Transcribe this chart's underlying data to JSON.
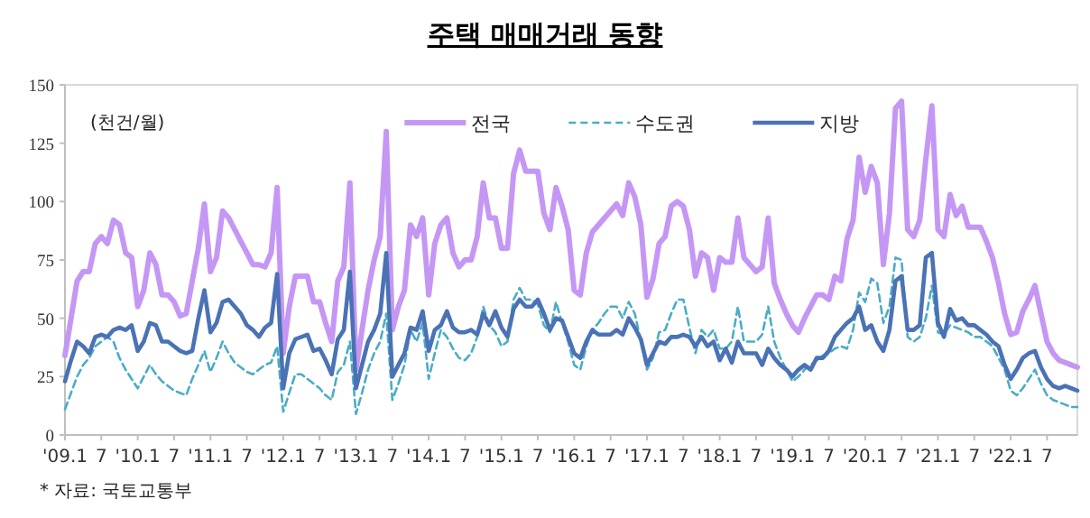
{
  "chart_data": {
    "type": "line",
    "title": "주택 매매거래 동향",
    "ylabel": "(천건/월)",
    "annotations": [
      "* 자료: 국토교통부"
    ],
    "x": [
      "2009-01",
      "2009-02",
      "2009-03",
      "2009-04",
      "2009-05",
      "2009-06",
      "2009-07",
      "2009-08",
      "2009-09",
      "2009-10",
      "2009-11",
      "2009-12",
      "2010-01",
      "2010-02",
      "2010-03",
      "2010-04",
      "2010-05",
      "2010-06",
      "2010-07",
      "2010-08",
      "2010-09",
      "2010-10",
      "2010-11",
      "2010-12",
      "2011-01",
      "2011-02",
      "2011-03",
      "2011-04",
      "2011-05",
      "2011-06",
      "2011-07",
      "2011-08",
      "2011-09",
      "2011-10",
      "2011-11",
      "2011-12",
      "2012-01",
      "2012-02",
      "2012-03",
      "2012-04",
      "2012-05",
      "2012-06",
      "2012-07",
      "2012-08",
      "2012-09",
      "2012-10",
      "2012-11",
      "2012-12",
      "2013-01",
      "2013-02",
      "2013-03",
      "2013-04",
      "2013-05",
      "2013-06",
      "2013-07",
      "2013-08",
      "2013-09",
      "2013-10",
      "2013-11",
      "2013-12",
      "2014-01",
      "2014-02",
      "2014-03",
      "2014-04",
      "2014-05",
      "2014-06",
      "2014-07",
      "2014-08",
      "2014-09",
      "2014-10",
      "2014-11",
      "2014-12",
      "2015-01",
      "2015-02",
      "2015-03",
      "2015-04",
      "2015-05",
      "2015-06",
      "2015-07",
      "2015-08",
      "2015-09",
      "2015-10",
      "2015-11",
      "2015-12",
      "2016-01",
      "2016-02",
      "2016-03",
      "2016-04",
      "2016-05",
      "2016-06",
      "2016-07",
      "2016-08",
      "2016-09",
      "2016-10",
      "2016-11",
      "2016-12",
      "2017-01",
      "2017-02",
      "2017-03",
      "2017-04",
      "2017-05",
      "2017-06",
      "2017-07",
      "2017-08",
      "2017-09",
      "2017-10",
      "2017-11",
      "2017-12",
      "2018-01",
      "2018-02",
      "2018-03",
      "2018-04",
      "2018-05",
      "2018-06",
      "2018-07",
      "2018-08",
      "2018-09",
      "2018-10",
      "2018-11",
      "2018-12",
      "2019-01",
      "2019-02",
      "2019-03",
      "2019-04",
      "2019-05",
      "2019-06",
      "2019-07",
      "2019-08",
      "2019-09",
      "2019-10",
      "2019-11",
      "2019-12",
      "2020-01",
      "2020-02",
      "2020-03",
      "2020-04",
      "2020-05",
      "2020-06",
      "2020-07",
      "2020-08",
      "2020-09",
      "2020-10",
      "2020-11",
      "2020-12",
      "2021-01",
      "2021-02",
      "2021-03",
      "2021-04",
      "2021-05",
      "2021-06",
      "2021-07",
      "2021-08",
      "2021-09",
      "2021-10",
      "2021-11",
      "2021-12",
      "2022-01",
      "2022-02",
      "2022-03",
      "2022-04",
      "2022-05",
      "2022-06",
      "2022-07",
      "2022-08",
      "2022-09",
      "2022-10",
      "2022-11",
      "2022-12"
    ],
    "series": [
      {
        "name": "전국",
        "color": "#c597f5",
        "line_style": "solid",
        "values": [
          34,
          50,
          66,
          70,
          70,
          82,
          85,
          82,
          92,
          90,
          78,
          76,
          55,
          62,
          78,
          73,
          60,
          60,
          57,
          51,
          52,
          66,
          80,
          99,
          70,
          76,
          96,
          93,
          88,
          83,
          78,
          73,
          73,
          72,
          78,
          106,
          35,
          55,
          68,
          68,
          68,
          57,
          57,
          48,
          40,
          66,
          72,
          108,
          28,
          45,
          62,
          75,
          85,
          130,
          45,
          55,
          62,
          90,
          85,
          93,
          60,
          82,
          90,
          93,
          78,
          72,
          75,
          75,
          85,
          108,
          93,
          93,
          80,
          80,
          112,
          122,
          113,
          113,
          113,
          95,
          88,
          106,
          98,
          88,
          62,
          60,
          78,
          87,
          90,
          93,
          96,
          99,
          94,
          108,
          102,
          90,
          59,
          67,
          82,
          85,
          98,
          100,
          98,
          88,
          68,
          78,
          76,
          62,
          76,
          74,
          74,
          93,
          76,
          73,
          70,
          72,
          93,
          65,
          58,
          52,
          47,
          44,
          50,
          55,
          60,
          60,
          58,
          68,
          66,
          84,
          92,
          119,
          104,
          115,
          108,
          73,
          95,
          140,
          143,
          88,
          85,
          92,
          118,
          141,
          88,
          85,
          103,
          94,
          98,
          89,
          89,
          89,
          83,
          76,
          65,
          52,
          43,
          44,
          53,
          58,
          64,
          52,
          40,
          35,
          32,
          31,
          30,
          29
        ]
      },
      {
        "name": "수도권",
        "color": "#4bacc6",
        "line_style": "dashed",
        "values": [
          11,
          18,
          25,
          30,
          33,
          38,
          40,
          42,
          40,
          33,
          28,
          24,
          20,
          25,
          30,
          26,
          23,
          21,
          19,
          18,
          17,
          24,
          30,
          36,
          27,
          33,
          40,
          35,
          31,
          29,
          27,
          26,
          28,
          30,
          31,
          38,
          10,
          18,
          26,
          26,
          24,
          22,
          20,
          17,
          15,
          27,
          30,
          40,
          9,
          18,
          28,
          35,
          40,
          52,
          15,
          22,
          30,
          45,
          40,
          48,
          24,
          35,
          45,
          42,
          37,
          33,
          32,
          35,
          42,
          55,
          47,
          44,
          38,
          40,
          58,
          63,
          58,
          58,
          56,
          47,
          44,
          57,
          48,
          40,
          30,
          28,
          38,
          45,
          48,
          52,
          55,
          55,
          50,
          57,
          52,
          40,
          28,
          33,
          44,
          45,
          52,
          58,
          58,
          46,
          35,
          45,
          42,
          45,
          37,
          37,
          40,
          55,
          40,
          40,
          40,
          43,
          55,
          40,
          33,
          28,
          23,
          25,
          28,
          30,
          32,
          34,
          35,
          37,
          38,
          37,
          45,
          61,
          57,
          67,
          65,
          48,
          55,
          76,
          75,
          42,
          40,
          42,
          50,
          64,
          44,
          43,
          47,
          46,
          45,
          44,
          42,
          42,
          40,
          38,
          33,
          28,
          19,
          17,
          20,
          24,
          28,
          22,
          17,
          15,
          14,
          13,
          12,
          12
        ]
      },
      {
        "name": "지방",
        "color": "#4a72b5",
        "line_style": "solid",
        "values": [
          23,
          32,
          40,
          38,
          35,
          42,
          43,
          42,
          45,
          46,
          45,
          47,
          36,
          40,
          48,
          47,
          40,
          40,
          38,
          36,
          35,
          36,
          50,
          62,
          44,
          48,
          57,
          58,
          55,
          52,
          47,
          45,
          42,
          46,
          48,
          69,
          20,
          35,
          41,
          42,
          43,
          36,
          37,
          32,
          26,
          41,
          45,
          70,
          20,
          30,
          40,
          45,
          52,
          78,
          25,
          30,
          35,
          46,
          45,
          53,
          36,
          45,
          47,
          53,
          46,
          44,
          44,
          45,
          43,
          52,
          47,
          53,
          46,
          42,
          54,
          58,
          55,
          55,
          58,
          52,
          45,
          50,
          49,
          42,
          35,
          33,
          40,
          45,
          43,
          43,
          43,
          45,
          43,
          50,
          46,
          41,
          30,
          35,
          40,
          39,
          42,
          42,
          43,
          42,
          38,
          42,
          38,
          40,
          32,
          37,
          31,
          40,
          35,
          35,
          35,
          30,
          37,
          33,
          30,
          28,
          25,
          28,
          30,
          28,
          33,
          33,
          36,
          42,
          45,
          48,
          50,
          55,
          45,
          47,
          40,
          36,
          45,
          66,
          68,
          45,
          45,
          47,
          76,
          78,
          48,
          42,
          54,
          49,
          50,
          47,
          47,
          45,
          43,
          40,
          38,
          30,
          24,
          28,
          33,
          35,
          36,
          29,
          24,
          21,
          20,
          21,
          20,
          19
        ]
      }
    ],
    "xlim": [
      "2009-01",
      "2022-12"
    ],
    "xticks": [
      {
        "value": "2009-01",
        "label": "'09.1"
      },
      {
        "value": "2009-07",
        "label": "7"
      },
      {
        "value": "2010-01",
        "label": "'10.1"
      },
      {
        "value": "2010-07",
        "label": "7"
      },
      {
        "value": "2011-01",
        "label": "'11.1"
      },
      {
        "value": "2011-07",
        "label": "7"
      },
      {
        "value": "2012-01",
        "label": "'12.1"
      },
      {
        "value": "2012-07",
        "label": "7"
      },
      {
        "value": "2013-01",
        "label": "'13.1"
      },
      {
        "value": "2013-07",
        "label": "7"
      },
      {
        "value": "2014-01",
        "label": "'14.1"
      },
      {
        "value": "2014-07",
        "label": "7"
      },
      {
        "value": "2015-01",
        "label": "'15.1"
      },
      {
        "value": "2015-07",
        "label": "7"
      },
      {
        "value": "2016-01",
        "label": "'16.1"
      },
      {
        "value": "2016-07",
        "label": "7"
      },
      {
        "value": "2017-01",
        "label": "'17.1"
      },
      {
        "value": "2017-07",
        "label": "7"
      },
      {
        "value": "2018-01",
        "label": "'18.1"
      },
      {
        "value": "2018-07",
        "label": "7"
      },
      {
        "value": "2019-01",
        "label": "'19.1"
      },
      {
        "value": "2019-07",
        "label": "7"
      },
      {
        "value": "2020-01",
        "label": "'20.1"
      },
      {
        "value": "2020-07",
        "label": "7"
      },
      {
        "value": "2021-01",
        "label": "'21.1"
      },
      {
        "value": "2021-07",
        "label": "7"
      },
      {
        "value": "2022-01",
        "label": "'22.1"
      },
      {
        "value": "2022-07",
        "label": "7"
      }
    ],
    "ylim": [
      0,
      150
    ],
    "yticks": [
      0,
      25,
      50,
      75,
      100,
      125,
      150
    ],
    "legend": "top"
  }
}
